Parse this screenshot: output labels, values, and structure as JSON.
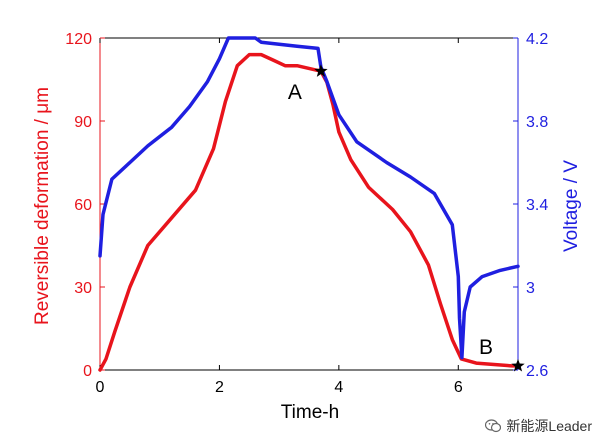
{
  "chart_data": {
    "type": "line",
    "title": "",
    "xlabel": "Time-h",
    "ylabel_left": "Reversible deformation / μm",
    "ylabel_right": "Voltage / V",
    "xlim": [
      0,
      7
    ],
    "ylim_left": [
      0,
      120
    ],
    "ylim_right": [
      2.6,
      4.2
    ],
    "x_ticks": [
      "0",
      "2",
      "4",
      "6"
    ],
    "y_left_ticks": [
      "0",
      "30",
      "60",
      "90",
      "120"
    ],
    "y_right_ticks": [
      "2.6",
      "3",
      "3.4",
      "3.8",
      "4.2"
    ],
    "grid": false,
    "series": [
      {
        "axis": "left",
        "color": "#e8141c",
        "x": [
          0,
          0.1,
          0.25,
          0.5,
          0.8,
          1.2,
          1.6,
          1.9,
          2.1,
          2.3,
          2.5,
          2.7,
          2.9,
          3.1,
          3.3,
          3.5,
          3.7,
          3.8,
          3.9,
          4.0,
          4.2,
          4.5,
          4.9,
          5.2,
          5.5,
          5.7,
          5.9,
          6.05,
          6.3,
          6.6,
          6.9,
          7.0
        ],
        "values": [
          0,
          4,
          14,
          30,
          45,
          55,
          65,
          80,
          97,
          110,
          114,
          114,
          112,
          110,
          110,
          109,
          108,
          104,
          96,
          86,
          76,
          66,
          58,
          50,
          38,
          24,
          11,
          4,
          2.5,
          2,
          1.5,
          1.5
        ]
      },
      {
        "axis": "right",
        "color": "#1f1fe0",
        "x": [
          0,
          0.05,
          0.2,
          0.5,
          0.8,
          1.2,
          1.5,
          1.8,
          2.0,
          2.15,
          2.6,
          2.7,
          3.0,
          3.3,
          3.65,
          3.7,
          3.8,
          4.0,
          4.3,
          4.8,
          5.2,
          5.6,
          5.9,
          6.0,
          6.02,
          6.06,
          6.1,
          6.2,
          6.4,
          6.7,
          7.0
        ],
        "values": [
          3.15,
          3.35,
          3.52,
          3.6,
          3.68,
          3.77,
          3.87,
          3.99,
          4.1,
          4.2,
          4.2,
          4.18,
          4.17,
          4.16,
          4.15,
          4.06,
          3.99,
          3.83,
          3.7,
          3.6,
          3.53,
          3.45,
          3.3,
          3.05,
          2.85,
          2.66,
          2.88,
          3.0,
          3.05,
          3.08,
          3.1
        ]
      }
    ],
    "annotations": [
      {
        "text": "A",
        "x": 3.7,
        "y_left": 108
      },
      {
        "text": "B",
        "x": 7.0,
        "y_left": 1.5
      }
    ]
  },
  "watermark": {
    "text": "新能源Leader",
    "icon": "wechat-icon"
  }
}
